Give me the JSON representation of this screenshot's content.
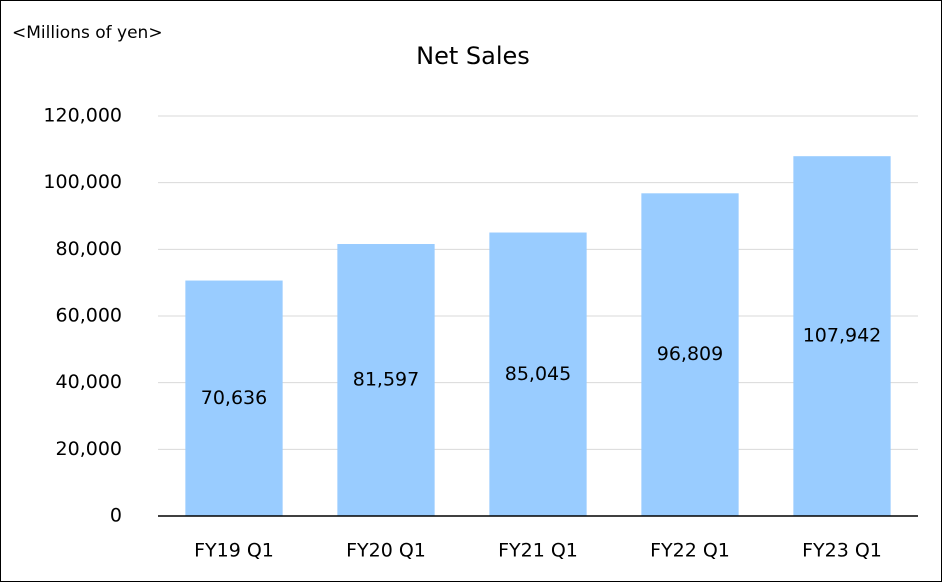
{
  "chart_data": {
    "type": "bar",
    "title": "Net Sales",
    "unit_label": "<Millions of yen>",
    "categories": [
      "FY19 Q1",
      "FY20 Q1",
      "FY21 Q1",
      "FY22 Q1",
      "FY23 Q1"
    ],
    "values": [
      70636,
      81597,
      85045,
      96809,
      107942
    ],
    "value_labels": [
      "70,636",
      "81,597",
      "85,045",
      "96,809",
      "107,942"
    ],
    "color": "#99ccff",
    "ylim": [
      0,
      120000
    ],
    "yticks": [
      0,
      {
        "value": 20000,
        "label": "20,000"
      },
      {
        "value": 40000,
        "label": "40,000"
      },
      {
        "value": 60000,
        "label": "60,000"
      },
      {
        "value": 80000,
        "label": "80,000"
      },
      {
        "value": 100000,
        "label": "100,000"
      },
      {
        "value": 120000,
        "label": "120,000"
      }
    ],
    "grid": true
  }
}
